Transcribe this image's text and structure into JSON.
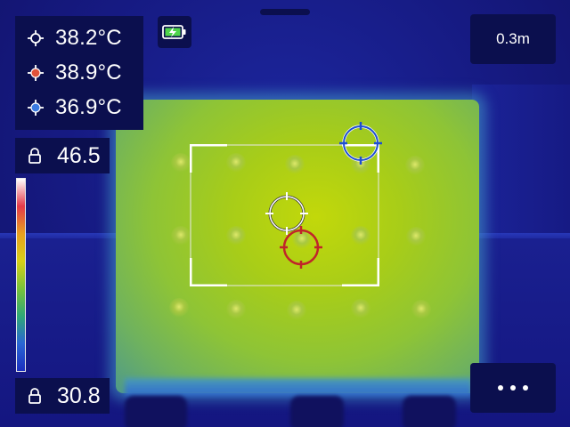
{
  "readouts": [
    {
      "label": "center",
      "value": "38.2°C",
      "color": "#ffffff",
      "icon": "crosshair-white-icon"
    },
    {
      "label": "max",
      "value": "38.9°C",
      "color": "#e0523a",
      "icon": "crosshair-red-icon"
    },
    {
      "label": "min",
      "value": "36.9°C",
      "color": "#3b7be0",
      "icon": "crosshair-blue-icon"
    }
  ],
  "status": {
    "battery_icon": "battery-charging-icon",
    "battery_color": "#4fd44b",
    "distance": "0.3m"
  },
  "scale": {
    "max": "46.5",
    "min": "30.8",
    "lock_icon": "lock-icon",
    "palette": [
      "#ffffff",
      "#e53a4a",
      "#e8a020",
      "#d8d018",
      "#79c23a",
      "#2fa878",
      "#2a66d4",
      "#1b2fbf"
    ]
  },
  "menu": {
    "more_icon": "more-dots-icon"
  },
  "spots": {
    "center_color": "#ffffff",
    "max_color": "#c0252a",
    "min_color": "#1e4fd0"
  }
}
